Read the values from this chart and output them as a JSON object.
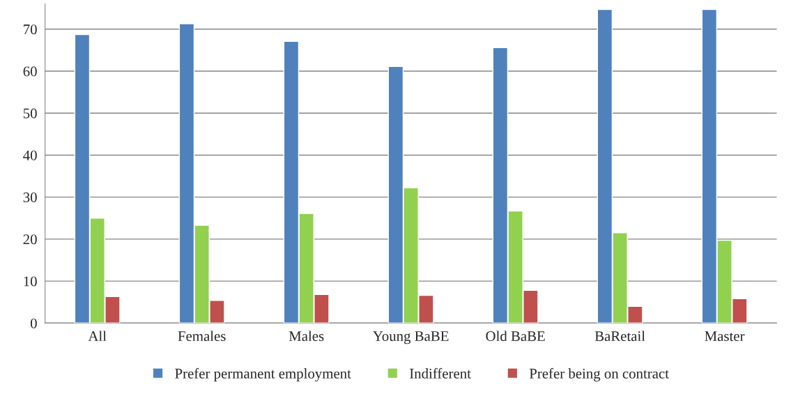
{
  "chart_data": {
    "type": "bar",
    "categories": [
      "All",
      "Females",
      "Males",
      "Young BaBE",
      "Old BaBE",
      "BaRetail",
      "Master"
    ],
    "series": [
      {
        "name": "Prefer permanent employment",
        "color": "#4f81bd",
        "values": [
          68.7,
          71.3,
          67.1,
          61.1,
          65.6,
          74.7,
          74.7
        ]
      },
      {
        "name": "Indifferent",
        "color": "#92d050",
        "values": [
          25.0,
          23.3,
          26.1,
          32.2,
          26.7,
          21.5,
          19.7
        ]
      },
      {
        "name": "Prefer being on contract",
        "color": "#c0504d",
        "values": [
          6.3,
          5.4,
          6.8,
          6.6,
          7.8,
          4.0,
          5.8
        ]
      }
    ],
    "ylim": [
      0,
      76
    ],
    "yticks": [
      0,
      10,
      20,
      30,
      40,
      50,
      60,
      70
    ],
    "grid": "y",
    "legend": "bottom"
  }
}
